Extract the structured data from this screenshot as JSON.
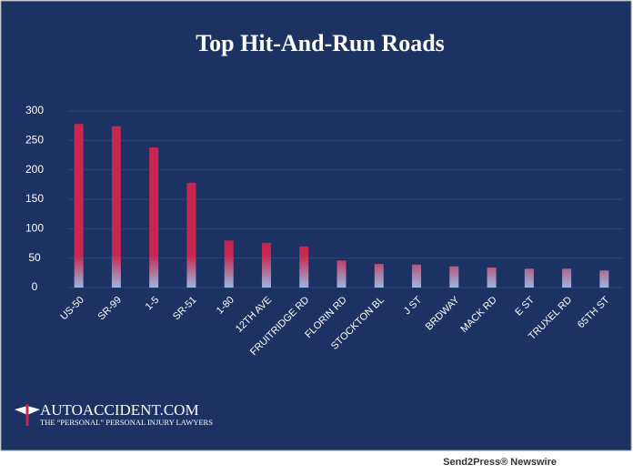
{
  "chart_data": {
    "type": "bar",
    "title": "Top Hit-And-Run Roads",
    "categories": [
      "US-50",
      "SR-99",
      "1-5",
      "SR-51",
      "1-80",
      "12TH AVE",
      "FRUITRIDGE RD",
      "FLORIN RD",
      "STOCKTON BL",
      "J ST",
      "BRDWAY",
      "MACK RD",
      "E ST",
      "TRUXEL RD",
      "65TH ST"
    ],
    "values": [
      278,
      274,
      238,
      178,
      80,
      76,
      70,
      46,
      40,
      39,
      36,
      34,
      32,
      32,
      29
    ],
    "color": "#c8254f",
    "ylim": [
      0,
      300
    ],
    "yticks": [
      0,
      50,
      100,
      150,
      200,
      250,
      300
    ],
    "grid": true
  },
  "branding": {
    "name": "AUTOACCIDENT.COM",
    "tagline": "THE “PERSONAL” PERSONAL INJURY LAWYERS"
  },
  "footer": "Send2Press® Newswire"
}
